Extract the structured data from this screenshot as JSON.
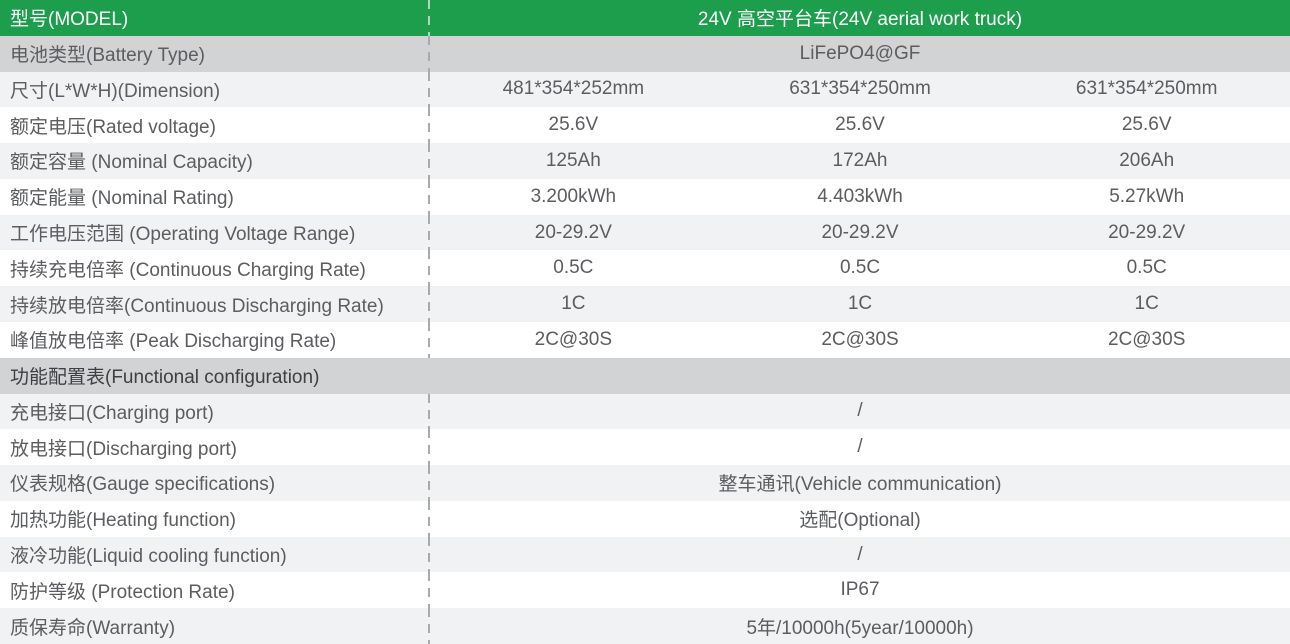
{
  "colors": {
    "header_green": "#1c9e4d",
    "dark_row_gray": "#d2d3d5",
    "light_row_gray": "#f1f2f4",
    "white_row": "#ffffff",
    "label_text": "#5b5d60",
    "section_text": "#3d3f42",
    "header_text": "#ffffff",
    "divider_dash": "#a8abae"
  },
  "table": {
    "header": {
      "label": "型号(MODEL)",
      "value": "24V 高空平台车(24V aerial work truck)"
    },
    "rows": [
      {
        "label": "电池类型(Battery Type)",
        "bg": "dark",
        "span": true,
        "values": [
          "LiFePO4@GF"
        ]
      },
      {
        "label": "尺寸(L*W*H)(Dimension)",
        "bg": "light",
        "span": false,
        "values": [
          "481*354*252mm",
          "631*354*250mm",
          "631*354*250mm"
        ]
      },
      {
        "label": "额定电压(Rated voltage)",
        "bg": "white",
        "span": false,
        "values": [
          "25.6V",
          "25.6V",
          "25.6V"
        ]
      },
      {
        "label": "额定容量 (Nominal Capacity)",
        "bg": "light",
        "span": false,
        "values": [
          "125Ah",
          "172Ah",
          "206Ah"
        ]
      },
      {
        "label": "额定能量 (Nominal Rating)",
        "bg": "white",
        "span": false,
        "values": [
          "3.200kWh",
          "4.403kWh",
          "5.27kWh"
        ]
      },
      {
        "label": "工作电压范围 (Operating Voltage Range)",
        "bg": "light",
        "span": false,
        "values": [
          "20-29.2V",
          "20-29.2V",
          "20-29.2V"
        ]
      },
      {
        "label": "持续充电倍率 (Continuous Charging Rate)",
        "bg": "white",
        "span": false,
        "values": [
          "0.5C",
          "0.5C",
          "0.5C"
        ]
      },
      {
        "label": "持续放电倍率(Continuous Discharging Rate)",
        "bg": "light",
        "span": false,
        "values": [
          "1C",
          "1C",
          "1C"
        ]
      },
      {
        "label": "峰值放电倍率 (Peak Discharging Rate)",
        "bg": "white",
        "span": false,
        "values": [
          "2C@30S",
          "2C@30S",
          "2C@30S"
        ]
      },
      {
        "label": "功能配置表(Functional configuration)",
        "bg": "section",
        "section": true,
        "values": []
      },
      {
        "label": "充电接口(Charging port)",
        "bg": "light",
        "span": true,
        "values": [
          "/"
        ]
      },
      {
        "label": "放电接口(Discharging port)",
        "bg": "white",
        "span": true,
        "values": [
          "/"
        ]
      },
      {
        "label": "仪表规格(Gauge specifications)",
        "bg": "light",
        "span": true,
        "values": [
          "整车通讯(Vehicle communication)"
        ]
      },
      {
        "label": "加热功能(Heating function)",
        "bg": "white",
        "span": true,
        "values": [
          "选配(Optional)"
        ]
      },
      {
        "label": "液冷功能(Liquid cooling function)",
        "bg": "light",
        "span": true,
        "values": [
          "/"
        ]
      },
      {
        "label": "防护等级 (Protection Rate)",
        "bg": "white",
        "span": true,
        "values": [
          "IP67"
        ]
      },
      {
        "label": "质保寿命(Warranty)",
        "bg": "light",
        "span": true,
        "values": [
          "5年/10000h(5year/10000h)"
        ]
      }
    ]
  }
}
